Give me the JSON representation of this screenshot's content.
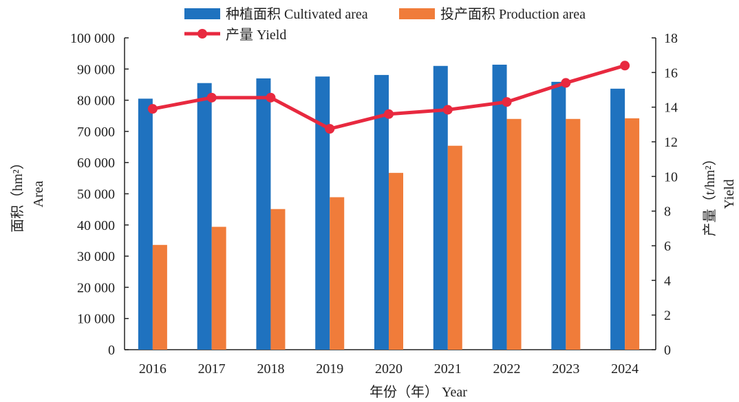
{
  "chart_data": {
    "type": "bar",
    "categories": [
      "2016",
      "2017",
      "2018",
      "2019",
      "2020",
      "2021",
      "2022",
      "2023",
      "2024"
    ],
    "series": [
      {
        "name": "种植面积 Cultivated area",
        "axis": "left",
        "kind": "bar",
        "color": "#1f72bf",
        "values": [
          80500,
          85500,
          87000,
          87600,
          88100,
          91000,
          91400,
          85900,
          83700
        ]
      },
      {
        "name": "投产面积 Production area",
        "axis": "left",
        "kind": "bar",
        "color": "#f07c3a",
        "values": [
          33600,
          39400,
          45100,
          48900,
          56700,
          65400,
          74000,
          74000,
          74200
        ]
      },
      {
        "name": "产量 Yield",
        "axis": "right",
        "kind": "line",
        "color": "#e8293f",
        "values": [
          13.9,
          14.55,
          14.55,
          12.75,
          13.6,
          13.85,
          14.3,
          15.4,
          16.4
        ]
      }
    ],
    "xlabel": "年份（年） Year",
    "ylabel_left": [
      "面积（hm²）",
      "Area"
    ],
    "ylabel_right": [
      "产量（t/hm²）",
      "Yield"
    ],
    "ylim_left": [
      0,
      100000
    ],
    "ylim_right": [
      0,
      18
    ],
    "yticks_left": [
      "0",
      "10 000",
      "20 000",
      "30 000",
      "40 000",
      "50 000",
      "60 000",
      "70 000",
      "80 000",
      "90 000",
      "100 000"
    ],
    "yticks_right": [
      "0",
      "2",
      "4",
      "6",
      "8",
      "10",
      "12",
      "14",
      "16",
      "18"
    ],
    "grid": false,
    "legend_position": "top"
  }
}
